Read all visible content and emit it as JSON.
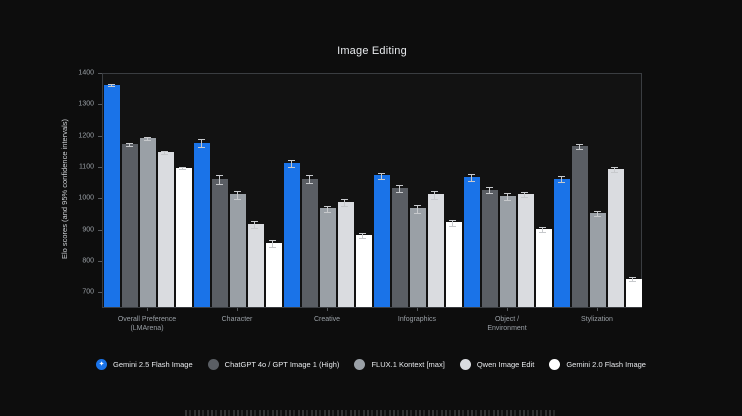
{
  "chart_data": {
    "type": "bar",
    "title": "Image Editing",
    "ylabel": "Elo scores (and 95% confidence intervals)",
    "xlabel": "",
    "categories": [
      "Overall Preference\n(LMArena)",
      "Character",
      "Creative",
      "Infographics",
      "Object /\nEnvironment",
      "Stylization"
    ],
    "series": [
      {
        "name": "Gemini 2.5 Flash Image",
        "color": "#1a73e8",
        "marker_glyph": "✦",
        "values": [
          1360,
          1175,
          1110,
          1070,
          1065,
          1060
        ],
        "errors": [
          6,
          14,
          12,
          12,
          12,
          10
        ]
      },
      {
        "name": "ChatGPT 4o / GPT Image 1 (High)",
        "color": "#5a5e64",
        "values": [
          1170,
          1060,
          1060,
          1030,
          1025,
          1165
        ],
        "errors": [
          6,
          16,
          14,
          14,
          12,
          10
        ]
      },
      {
        "name": "FLUX.1 Kontext [max]",
        "color": "#9aa0a6",
        "values": [
          1190,
          1010,
          965,
          965,
          1005,
          950
        ],
        "errors": [
          6,
          14,
          12,
          14,
          12,
          10
        ]
      },
      {
        "name": "Qwen Image Edit",
        "color": "#dadce0",
        "values": [
          1145,
          915,
          985,
          1010,
          1010,
          1090
        ],
        "errors": [
          6,
          12,
          14,
          14,
          10,
          10
        ]
      },
      {
        "name": "Gemini 2.0 Flash Image",
        "color": "#ffffff",
        "values": [
          1095,
          855,
          880,
          920,
          900,
          740
        ],
        "errors": [
          6,
          12,
          10,
          12,
          10,
          8
        ]
      }
    ],
    "ylim": [
      650,
      1400
    ],
    "yticks": [
      700,
      800,
      900,
      1000,
      1100,
      1200,
      1300,
      1400
    ],
    "grid": false,
    "legend_position": "bottom",
    "background_color": "#0d0d0d",
    "error_bar_color": "#c7c9cc"
  }
}
